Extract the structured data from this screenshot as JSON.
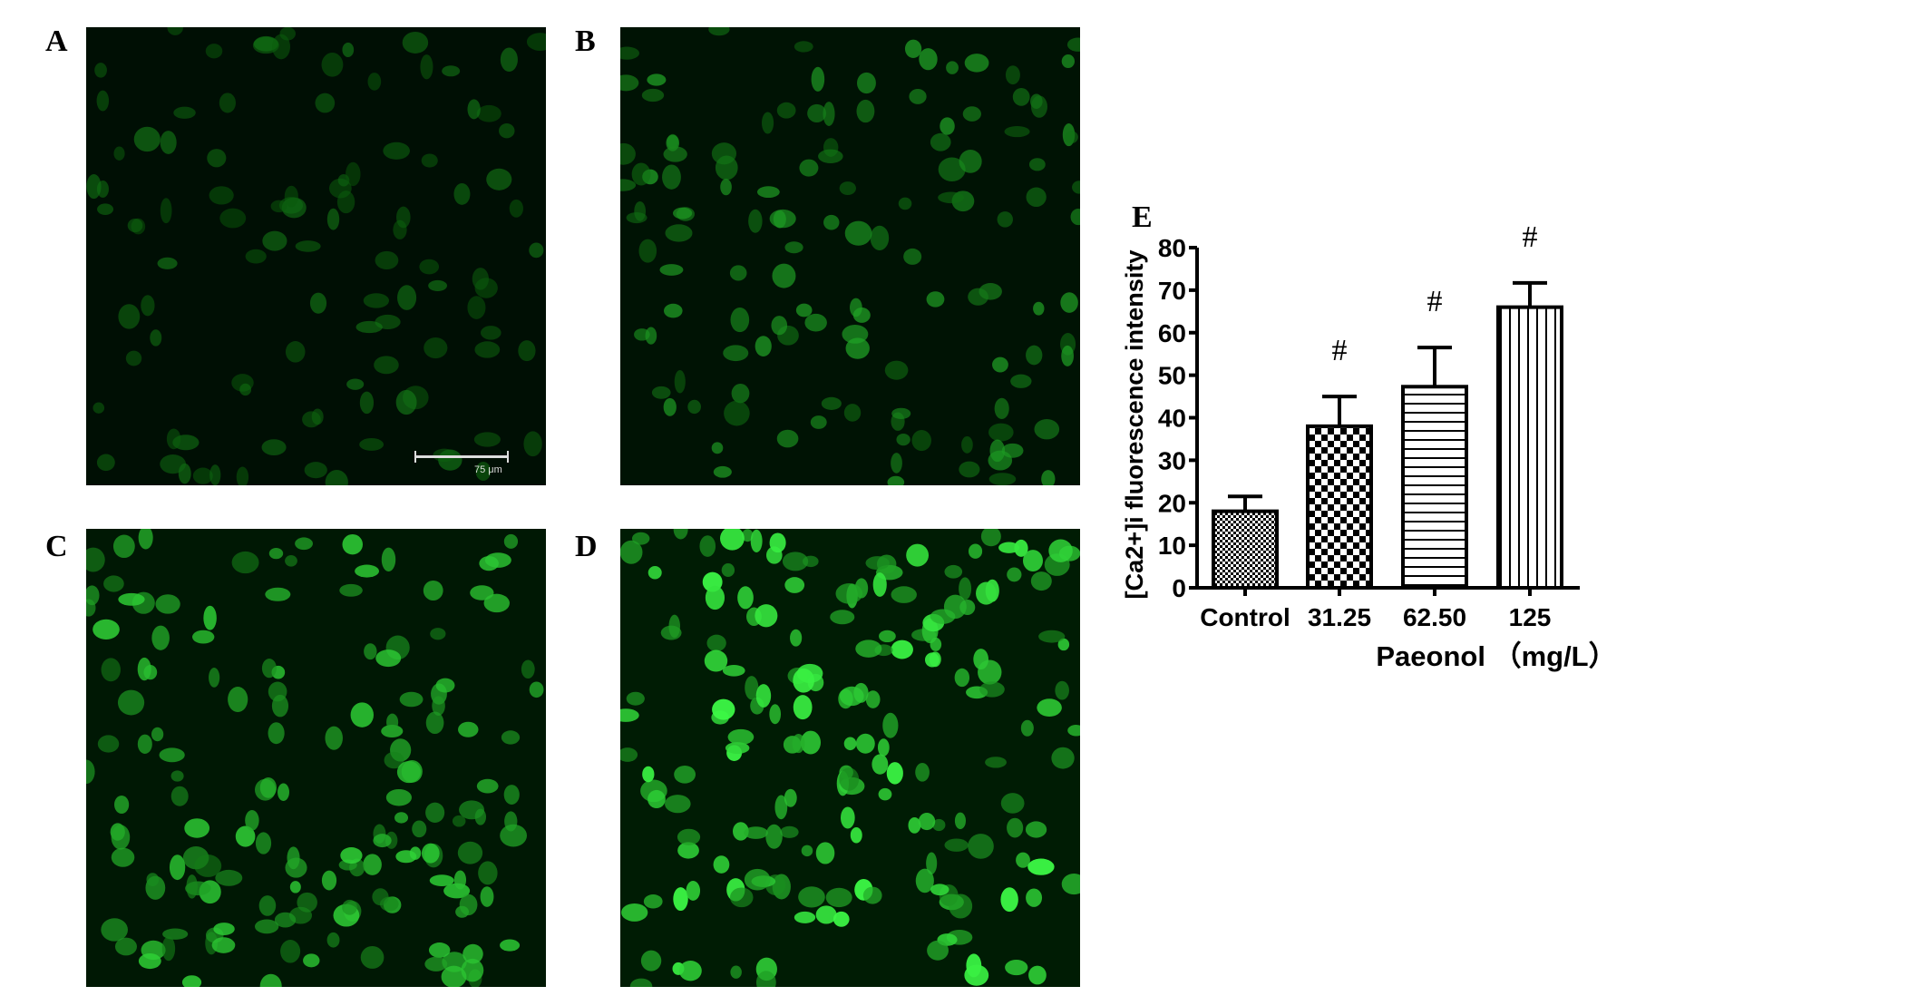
{
  "panels": [
    {
      "label": "A",
      "intensity": 0.35
    },
    {
      "label": "B",
      "intensity": 0.55
    },
    {
      "label": "C",
      "intensity": 0.8
    },
    {
      "label": "D",
      "intensity": 1.0
    }
  ],
  "scale_bar": "75 μm",
  "chart_label": "E",
  "chart_data": {
    "type": "bar",
    "categories": [
      "Control",
      "31.25",
      "62.50",
      "125"
    ],
    "values": [
      18,
      38,
      47.3,
      66
    ],
    "error_upper": [
      21.5,
      45,
      56.5,
      71.7
    ],
    "annotations": [
      "",
      "#",
      "#",
      "#"
    ],
    "patterns": [
      "fine-checker",
      "checker",
      "horizontal-lines",
      "vertical-lines"
    ],
    "xlabel": "Paeonol （mg/L）",
    "ylabel": "[Ca2+]i fluorescence intensity",
    "ylim": [
      0,
      80
    ],
    "yticks": [
      "0",
      "10",
      "20",
      "30",
      "40",
      "50",
      "60",
      "70",
      "80"
    ],
    "grid": false
  }
}
